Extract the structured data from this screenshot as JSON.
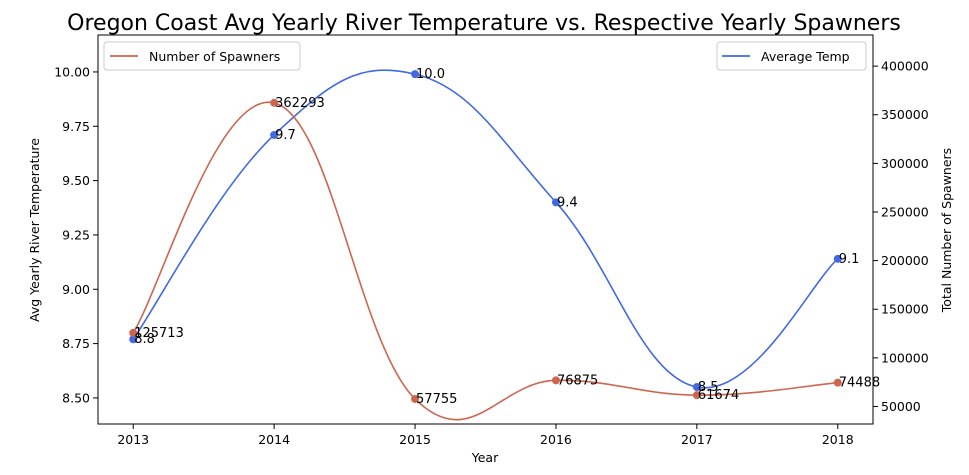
{
  "chart_data": {
    "type": "line",
    "title": "Oregon Coast Avg Yearly River Temperature vs. Respective Yearly Spawners",
    "xlabel": "Year",
    "ylabel_left": "Avg Yearly River Temperature",
    "ylabel_right": "Total Number of Spawners",
    "x": [
      2013,
      2014,
      2015,
      2016,
      2017,
      2018
    ],
    "x_tick_labels": [
      "2013",
      "2014",
      "2015",
      "2016",
      "2017",
      "2018"
    ],
    "y_left_ticks": [
      "8.50",
      "8.75",
      "9.00",
      "9.25",
      "9.50",
      "9.75",
      "10.00"
    ],
    "y_right_ticks": [
      "50000",
      "100000",
      "150000",
      "200000",
      "250000",
      "300000",
      "350000",
      "400000"
    ],
    "ylim_left": [
      8.38,
      10.17
    ],
    "ylim_right": [
      32000,
      432000
    ],
    "series": [
      {
        "name": "Average Temp",
        "axis": "left",
        "color": "#4169e1",
        "values": [
          8.77,
          9.71,
          9.99,
          9.4,
          8.55,
          9.14
        ],
        "labels": [
          "8.8",
          "9.7",
          "10.0",
          "9.4",
          "8.5",
          "9.1"
        ]
      },
      {
        "name": "Number of Spawners",
        "axis": "right",
        "color": "#cd6650",
        "values": [
          125713,
          362293,
          57755,
          76875,
          61674,
          74488
        ],
        "labels": [
          "125713",
          "362293",
          "57755",
          "76875",
          "61674",
          "74488"
        ]
      }
    ],
    "legend_left": {
      "placement": "upper-left",
      "label": "Number of Spawners"
    },
    "legend_right": {
      "placement": "upper-right",
      "label": "Average Temp"
    },
    "grid": false
  }
}
